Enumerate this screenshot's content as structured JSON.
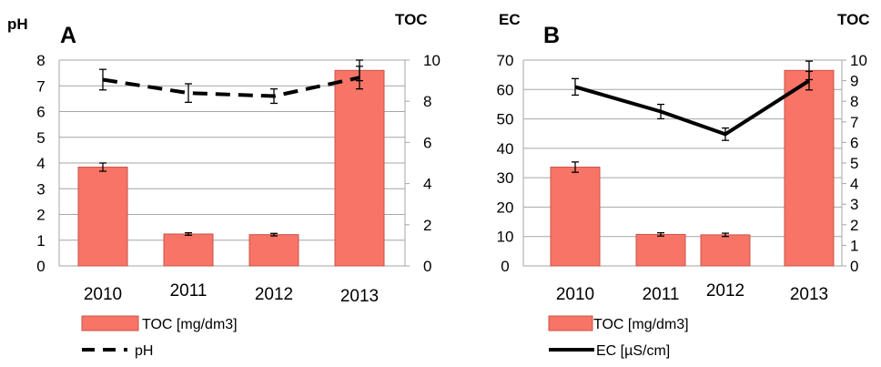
{
  "colors": {
    "bar": "#F87467",
    "bar_stroke": "#c9544a",
    "line": "#000000",
    "grid": "#a6a6a6"
  },
  "chart_data": [
    {
      "panel": "A",
      "type": "bar",
      "categories": [
        "2010",
        "2011",
        "2012",
        "2013"
      ],
      "left_axis": {
        "title": "pH",
        "ylim": [
          0,
          8
        ],
        "ticks": [
          "0",
          "1",
          "2",
          "3",
          "4",
          "5",
          "6",
          "7",
          "8"
        ]
      },
      "right_axis": {
        "title": "TOC",
        "ylim": [
          0,
          10
        ],
        "ticks": [
          "0",
          "2",
          "4",
          "6",
          "8",
          "10"
        ]
      },
      "grid": true,
      "legend_position": "bottom",
      "series": [
        {
          "name": "TOC [mg/dm3]",
          "kind": "bar",
          "axis": "right",
          "values": [
            4.8,
            1.55,
            1.52,
            9.5
          ],
          "errors": [
            0.2,
            0.06,
            0.06,
            0.5
          ]
        },
        {
          "name": "pH",
          "kind": "line",
          "style": "dashed",
          "axis": "right",
          "values": [
            9.05,
            8.4,
            8.25,
            9.15
          ],
          "errors": [
            0.5,
            0.45,
            0.35,
            0.55
          ]
        }
      ]
    },
    {
      "panel": "B",
      "type": "bar",
      "categories": [
        "2010",
        "2011",
        "2012",
        "2013"
      ],
      "left_axis": {
        "title": "EC",
        "ylim": [
          0,
          70
        ],
        "ticks": [
          "0",
          "10",
          "20",
          "30",
          "40",
          "50",
          "60",
          "70"
        ]
      },
      "right_axis": {
        "title": "TOC",
        "ylim": [
          0,
          10
        ],
        "ticks": [
          "0",
          "1",
          "2",
          "3",
          "4",
          "5",
          "6",
          "7",
          "8",
          "9",
          "10"
        ]
      },
      "grid": true,
      "legend_position": "bottom",
      "series": [
        {
          "name": "TOC [mg/dm3]",
          "kind": "bar",
          "axis": "right",
          "values": [
            4.8,
            1.53,
            1.51,
            9.5
          ],
          "errors": [
            0.25,
            0.08,
            0.08,
            0.45
          ]
        },
        {
          "name": "EC [µS/cm]",
          "kind": "line",
          "style": "solid",
          "axis": "right",
          "values": [
            8.7,
            7.5,
            6.4,
            9.0
          ],
          "errors": [
            0.4,
            0.35,
            0.3,
            0.45
          ]
        }
      ]
    }
  ]
}
